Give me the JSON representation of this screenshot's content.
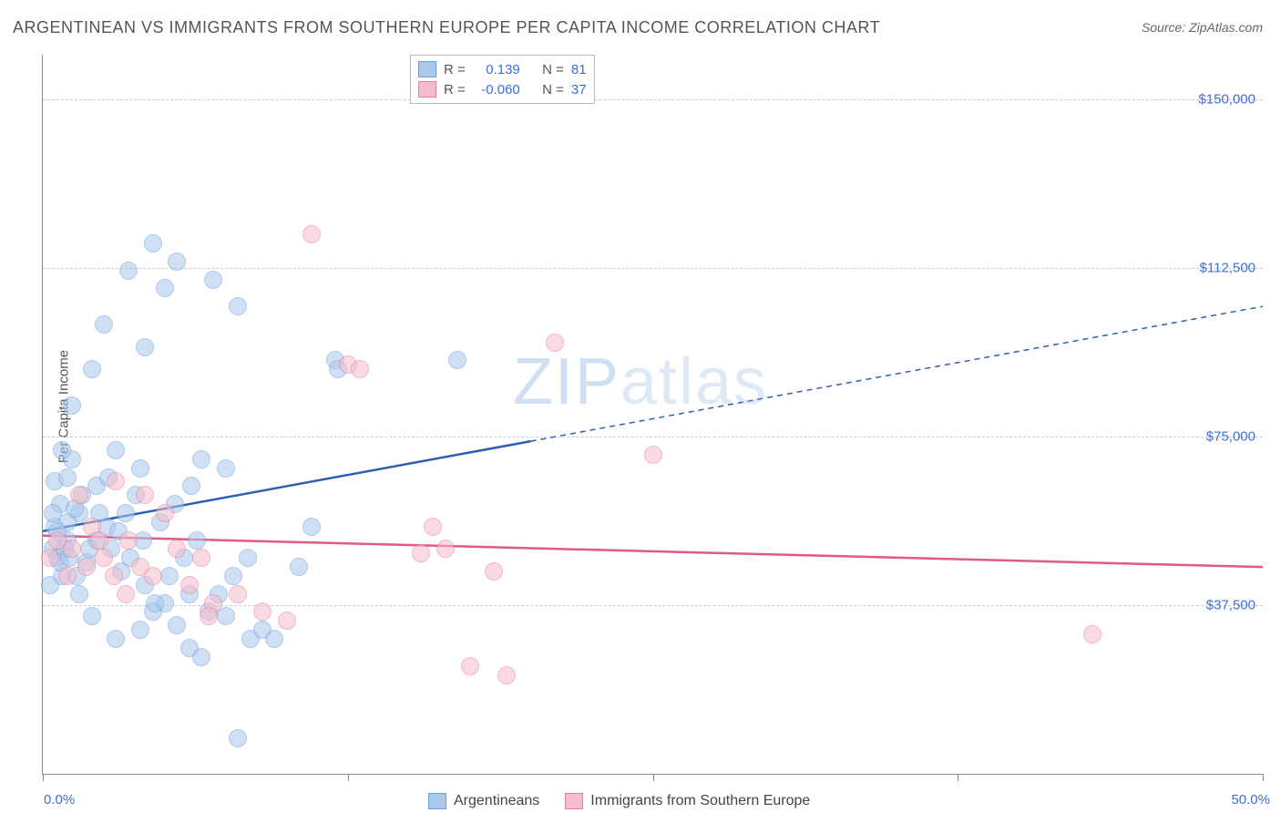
{
  "title": "ARGENTINEAN VS IMMIGRANTS FROM SOUTHERN EUROPE PER CAPITA INCOME CORRELATION CHART",
  "source": "Source: ZipAtlas.com",
  "ylabel": "Per Capita Income",
  "watermark_a": "ZIP",
  "watermark_b": "atlas",
  "chart": {
    "type": "scatter",
    "xlim": [
      0,
      50
    ],
    "ylim": [
      0,
      160000
    ],
    "ytick_values": [
      37500,
      75000,
      112500,
      150000
    ],
    "ytick_labels": [
      "$37,500",
      "$75,000",
      "$112,500",
      "$150,000"
    ],
    "xaxis_left_label": "0.0%",
    "xaxis_right_label": "50.0%",
    "xtick_positions": [
      0,
      12.5,
      25,
      37.5,
      50
    ],
    "grid_color": "#cccccc",
    "axis_color": "#888888",
    "background": "#ffffff",
    "marker_radius": 10,
    "marker_opacity": 0.55,
    "series": [
      {
        "name": "Argentineans",
        "color_fill": "#aac8ec",
        "color_stroke": "#6d9fdc",
        "r_value": "0.139",
        "n_value": "81",
        "trend": {
          "x1": 0,
          "y1": 54000,
          "x2": 50,
          "y2": 104000,
          "solid_until_x": 20,
          "color": "#2e5fb3",
          "width": 2.5
        },
        "points": [
          [
            0.3,
            42000
          ],
          [
            0.4,
            50000
          ],
          [
            0.5,
            55000
          ],
          [
            0.6,
            48000
          ],
          [
            0.7,
            60000
          ],
          [
            0.8,
            44000
          ],
          [
            0.5,
            65000
          ],
          [
            1.0,
            52000
          ],
          [
            1.2,
            70000
          ],
          [
            1.5,
            58000
          ],
          [
            1.8,
            47000
          ],
          [
            2.0,
            90000
          ],
          [
            2.2,
            64000
          ],
          [
            2.5,
            100000
          ],
          [
            3.0,
            72000
          ],
          [
            3.5,
            112000
          ],
          [
            4.0,
            68000
          ],
          [
            4.2,
            95000
          ],
          [
            4.5,
            118000
          ],
          [
            5.0,
            108000
          ],
          [
            5.5,
            114000
          ],
          [
            5.0,
            38000
          ],
          [
            5.5,
            33000
          ],
          [
            6.0,
            28000
          ],
          [
            6.5,
            70000
          ],
          [
            7.0,
            110000
          ],
          [
            7.5,
            68000
          ],
          [
            8.0,
            104000
          ],
          [
            8.5,
            30000
          ],
          [
            4.0,
            32000
          ],
          [
            4.5,
            36000
          ],
          [
            3.0,
            30000
          ],
          [
            2.0,
            35000
          ],
          [
            1.5,
            40000
          ],
          [
            1.0,
            66000
          ],
          [
            0.8,
            72000
          ],
          [
            1.2,
            82000
          ],
          [
            2.8,
            50000
          ],
          [
            3.2,
            45000
          ],
          [
            6.0,
            40000
          ],
          [
            6.5,
            26000
          ],
          [
            7.5,
            35000
          ],
          [
            8.0,
            8000
          ],
          [
            12.0,
            92000
          ],
          [
            12.1,
            90000
          ],
          [
            11.0,
            55000
          ],
          [
            10.5,
            46000
          ],
          [
            17.0,
            92000
          ],
          [
            1.0,
            56000
          ],
          [
            1.3,
            59000
          ],
          [
            1.6,
            62000
          ],
          [
            0.9,
            50000
          ],
          [
            0.7,
            47000
          ],
          [
            2.2,
            52000
          ],
          [
            2.6,
            55000
          ],
          [
            3.4,
            58000
          ],
          [
            3.8,
            62000
          ],
          [
            4.2,
            42000
          ],
          [
            4.6,
            38000
          ],
          [
            5.2,
            44000
          ],
          [
            5.8,
            48000
          ],
          [
            6.3,
            52000
          ],
          [
            0.4,
            58000
          ],
          [
            0.6,
            54000
          ],
          [
            1.1,
            48000
          ],
          [
            1.4,
            44000
          ],
          [
            1.9,
            50000
          ],
          [
            2.3,
            58000
          ],
          [
            2.7,
            66000
          ],
          [
            3.1,
            54000
          ],
          [
            3.6,
            48000
          ],
          [
            4.1,
            52000
          ],
          [
            4.8,
            56000
          ],
          [
            5.4,
            60000
          ],
          [
            6.1,
            64000
          ],
          [
            6.8,
            36000
          ],
          [
            7.2,
            40000
          ],
          [
            7.8,
            44000
          ],
          [
            8.4,
            48000
          ],
          [
            9.0,
            32000
          ],
          [
            9.5,
            30000
          ]
        ]
      },
      {
        "name": "Immigants from Southern Europe",
        "legend_label": "Immigrants from Southern Europe",
        "color_fill": "#f5bdcb",
        "color_stroke": "#e88099",
        "r_value": "-0.060",
        "n_value": "37",
        "trend": {
          "x1": 0,
          "y1": 53000,
          "x2": 50,
          "y2": 46000,
          "solid_until_x": 50,
          "color": "#e05a84",
          "width": 2.5
        },
        "points": [
          [
            0.3,
            48000
          ],
          [
            0.6,
            52000
          ],
          [
            1.0,
            44000
          ],
          [
            1.5,
            62000
          ],
          [
            2.0,
            55000
          ],
          [
            2.5,
            48000
          ],
          [
            3.0,
            65000
          ],
          [
            3.5,
            52000
          ],
          [
            4.0,
            46000
          ],
          [
            4.5,
            44000
          ],
          [
            5.0,
            58000
          ],
          [
            5.5,
            50000
          ],
          [
            6.0,
            42000
          ],
          [
            6.5,
            48000
          ],
          [
            7.0,
            38000
          ],
          [
            8.0,
            40000
          ],
          [
            9.0,
            36000
          ],
          [
            10.0,
            34000
          ],
          [
            11.0,
            120000
          ],
          [
            12.5,
            91000
          ],
          [
            13.0,
            90000
          ],
          [
            15.5,
            49000
          ],
          [
            16.0,
            55000
          ],
          [
            16.5,
            50000
          ],
          [
            17.5,
            24000
          ],
          [
            18.5,
            45000
          ],
          [
            19.0,
            22000
          ],
          [
            21.0,
            96000
          ],
          [
            25.0,
            71000
          ],
          [
            43.0,
            31000
          ],
          [
            1.2,
            50000
          ],
          [
            1.8,
            46000
          ],
          [
            2.3,
            52000
          ],
          [
            2.9,
            44000
          ],
          [
            3.4,
            40000
          ],
          [
            4.2,
            62000
          ],
          [
            6.8,
            35000
          ]
        ]
      }
    ]
  },
  "legend_bottom": {
    "items": [
      {
        "label": "Argentineans",
        "fill": "#aac8ec",
        "stroke": "#6d9fdc"
      },
      {
        "label": "Immigrants from Southern Europe",
        "fill": "#f5bdcb",
        "stroke": "#e88099"
      }
    ]
  }
}
